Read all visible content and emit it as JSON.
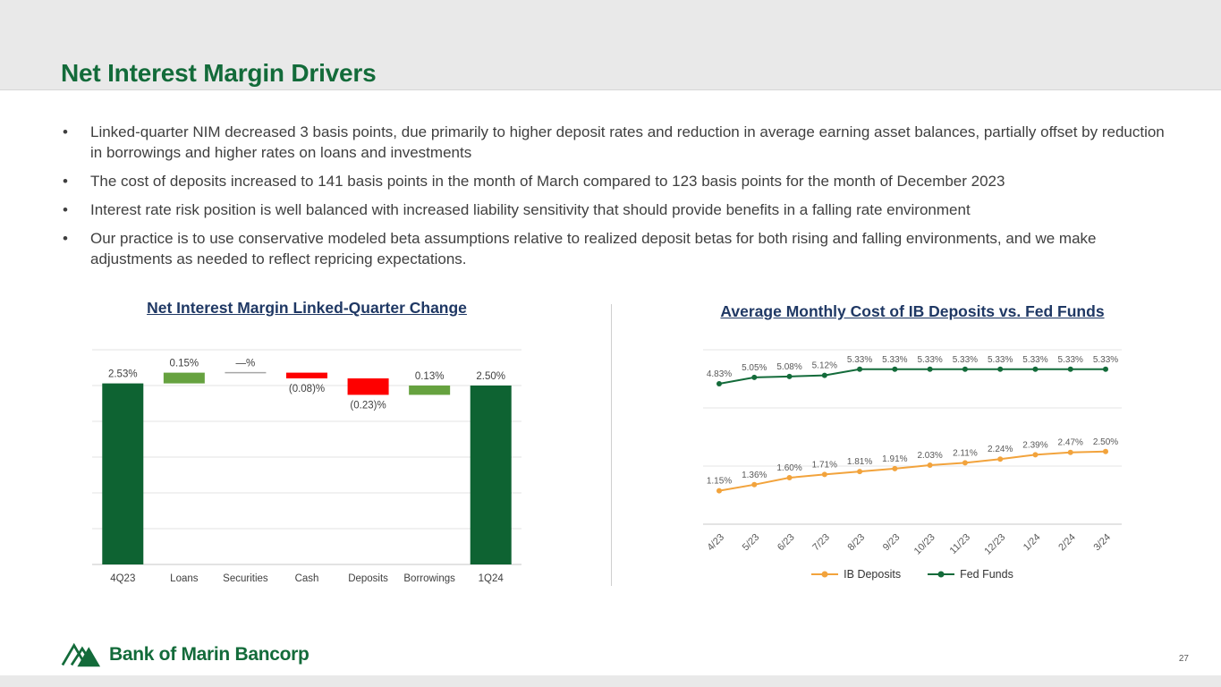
{
  "header": {
    "title": "Net Interest Margin Drivers"
  },
  "bullets": [
    "Linked-quarter NIM decreased 3 basis points, due primarily to higher deposit rates and reduction in average earning asset balances, partially offset by reduction in borrowings and higher rates on loans and investments",
    "The cost of deposits increased to 141 basis points in the month of March compared to 123 basis points for the month of December 2023",
    "Interest rate risk position is well balanced with increased liability sensitivity that should provide benefits in a falling rate environment",
    "Our practice is to use conservative modeled beta assumptions relative to realized deposit betas for both rising and falling environments, and we make adjustments as needed to reflect repricing expectations."
  ],
  "colors": {
    "brand_green": "#136b3a",
    "chart_title_navy": "#1f3864",
    "negative_red": "#fe0000",
    "positive_green": "#66a23f",
    "ib_deposits_orange": "#f2a33c",
    "header_band_gray": "#e9e9e9"
  },
  "chart_data": [
    {
      "type": "bar",
      "subtype": "waterfall",
      "title": "Net Interest Margin Linked-Quarter Change",
      "categories": [
        "4Q23",
        "Loans",
        "Securities",
        "Cash",
        "Deposits",
        "Borrowings",
        "1Q24"
      ],
      "values": [
        2.53,
        0.15,
        0.0,
        -0.08,
        -0.23,
        0.13,
        2.5
      ],
      "labels": [
        "2.53%",
        "0.15%",
        "—%",
        "(0.08)%",
        "(0.23)%",
        "0.13%",
        "2.50%"
      ],
      "roles": [
        "total",
        "up",
        "zero",
        "down",
        "down",
        "up",
        "total"
      ],
      "ylim": [
        0,
        3.0
      ],
      "grid_step": 0.5,
      "grid": true,
      "colors": {
        "total": "#0e6332",
        "up": "#66a23f",
        "down": "#fe0000",
        "zero": "#a6a6a6"
      }
    },
    {
      "type": "line",
      "title": "Average Monthly Cost of IB Deposits vs. Fed Funds",
      "x": [
        "4/23",
        "5/23",
        "6/23",
        "7/23",
        "8/23",
        "9/23",
        "10/23",
        "11/23",
        "12/23",
        "1/24",
        "2/24",
        "3/24"
      ],
      "series": [
        {
          "name": "IB Deposits",
          "color": "#f2a33c",
          "values": [
            1.15,
            1.36,
            1.6,
            1.71,
            1.81,
            1.91,
            2.03,
            2.11,
            2.24,
            2.39,
            2.47,
            2.5
          ],
          "labels": [
            "1.15%",
            "1.36%",
            "1.60%",
            "1.71%",
            "1.81%",
            "1.91%",
            "2.03%",
            "2.11%",
            "2.24%",
            "2.39%",
            "2.47%",
            "2.50%"
          ]
        },
        {
          "name": "Fed Funds",
          "color": "#136b3a",
          "values": [
            4.83,
            5.05,
            5.08,
            5.12,
            5.33,
            5.33,
            5.33,
            5.33,
            5.33,
            5.33,
            5.33,
            5.33
          ],
          "labels": [
            "4.83%",
            "5.05%",
            "5.08%",
            "5.12%",
            "5.33%",
            "5.33%",
            "5.33%",
            "5.33%",
            "5.33%",
            "5.33%",
            "5.33%",
            "5.33%"
          ]
        }
      ],
      "ylim": [
        0,
        6
      ],
      "grid_step": 2,
      "legend_position": "bottom"
    }
  ],
  "footer": {
    "logo_text": "Bank of Marin Bancorp",
    "page_number": "27"
  }
}
